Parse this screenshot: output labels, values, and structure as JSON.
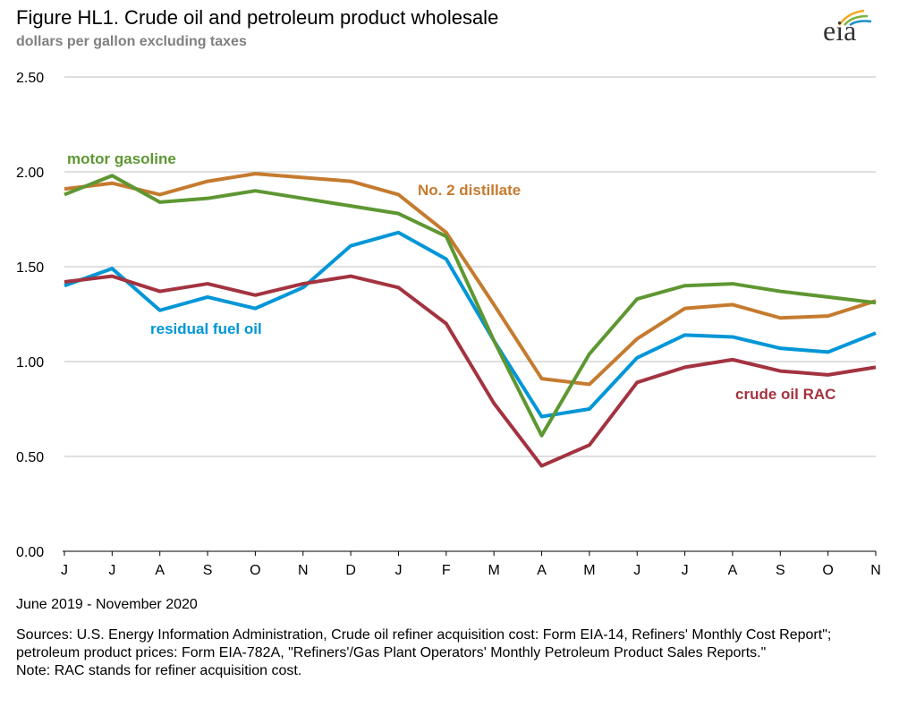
{
  "title": "Figure HL1.  Crude oil and petroleum product wholesale",
  "subtitle": "dollars per gallon excluding taxes",
  "logo_text": "eia",
  "date_range": "June 2019 - November 2020",
  "sources": "Sources:  U.S. Energy Information Administration, Crude oil refiner acquisition cost:  Form EIA-14, Refiners' Monthly  Cost Report\"; petroleum product prices:  Form EIA-782A, \"Refiners'/Gas Plant Operators' Monthly Petroleum Product Sales Reports.\"",
  "note": "Note:  RAC stands for refiner acquisition cost.",
  "chart_data": {
    "type": "line",
    "title": "Figure HL1.  Crude oil and petroleum product wholesale",
    "ylabel": "dollars per gallon excluding taxes",
    "xlabel": "June 2019 - November 2020",
    "categories": [
      "J",
      "J",
      "A",
      "S",
      "O",
      "N",
      "D",
      "J",
      "F",
      "M",
      "A",
      "M",
      "J",
      "J",
      "A",
      "S",
      "O",
      "N"
    ],
    "ylim": [
      0,
      2.5
    ],
    "yticks": [
      "0.00",
      "0.50",
      "1.00",
      "1.50",
      "2.00",
      "2.50"
    ],
    "grid": true,
    "series": [
      {
        "name": "motor gasoline",
        "color": "#5E9732",
        "values": [
          1.88,
          1.98,
          1.84,
          1.86,
          1.9,
          1.86,
          1.82,
          1.78,
          1.66,
          1.11,
          0.61,
          1.04,
          1.33,
          1.4,
          1.41,
          1.37,
          1.34,
          1.31
        ]
      },
      {
        "name": "No. 2 distillate",
        "color": "#C57B2F",
        "values": [
          1.91,
          1.94,
          1.88,
          1.95,
          1.99,
          1.97,
          1.95,
          1.88,
          1.68,
          1.3,
          0.91,
          0.88,
          1.12,
          1.28,
          1.3,
          1.23,
          1.24,
          1.32
        ]
      },
      {
        "name": "residual fuel oil",
        "color": "#0096D7",
        "values": [
          1.4,
          1.49,
          1.27,
          1.34,
          1.28,
          1.39,
          1.61,
          1.68,
          1.54,
          1.11,
          0.71,
          0.75,
          1.02,
          1.14,
          1.13,
          1.07,
          1.05,
          1.15
        ]
      },
      {
        "name": "crude oil RAC",
        "color": "#A33340",
        "values": [
          1.42,
          1.45,
          1.37,
          1.41,
          1.35,
          1.41,
          1.45,
          1.39,
          1.2,
          0.78,
          0.45,
          0.56,
          0.89,
          0.97,
          1.01,
          0.95,
          0.93,
          0.97
        ]
      }
    ]
  }
}
